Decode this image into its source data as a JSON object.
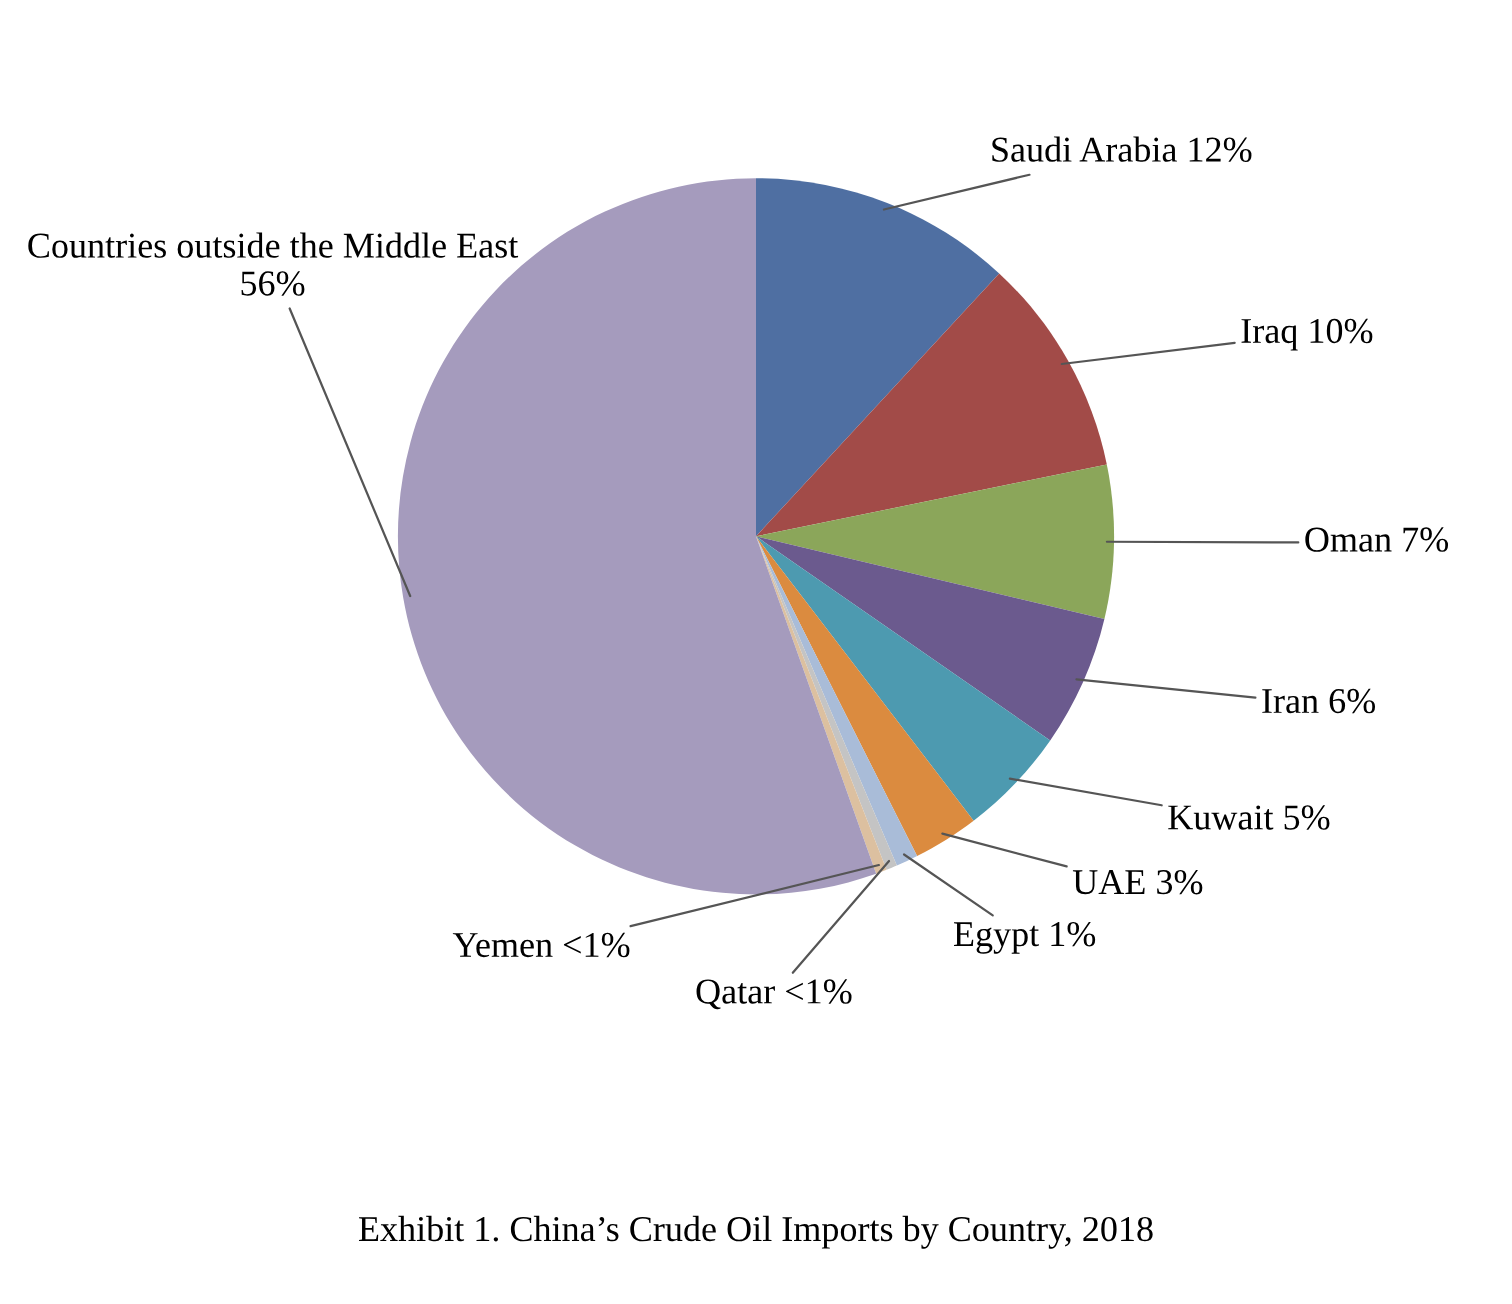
{
  "chart_data": {
    "type": "pie",
    "title": "Exhibit 1. China’s Crude Oil Imports by Country, 2018",
    "categories": [
      "Saudi Arabia",
      "Iraq",
      "Oman",
      "Iran",
      "Kuwait",
      "UAE",
      "Egypt",
      "Qatar",
      "Yemen",
      "Countries outside the Middle East"
    ],
    "values": [
      12,
      10,
      7,
      6,
      5,
      3,
      1,
      0.5,
      0.5,
      56
    ],
    "value_labels": [
      "12%",
      "10%",
      "7%",
      "6%",
      "5%",
      "3%",
      "1%",
      "<1%",
      "<1%",
      "56%"
    ],
    "colors": [
      "#4f6fa2",
      "#a24b48",
      "#8ba65a",
      "#6b5a8e",
      "#4d9ab0",
      "#db8b3f",
      "#a9bcd8",
      "#c4c4c4",
      "#dcc0a0",
      "#a59bbd"
    ]
  }
}
